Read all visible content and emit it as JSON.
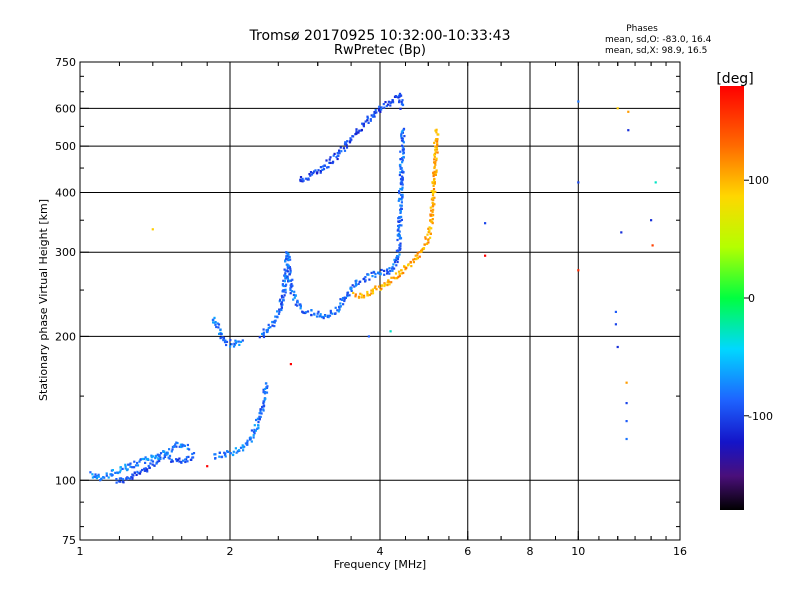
{
  "chart_data": {
    "type": "scatter",
    "title": "Tromsø 20170925 10:32:00-10:33:43",
    "subtitle": "RwPretec (Bp)",
    "xlabel": "Frequency [MHz]",
    "ylabel": "Stationary phase Virtual Height [km]",
    "x_scale": "log",
    "y_scale": "log",
    "xlim": [
      1,
      16
    ],
    "ylim": [
      75,
      750
    ],
    "x_ticks": [
      1,
      2,
      4,
      6,
      8,
      10,
      16
    ],
    "y_ticks": [
      75,
      100,
      200,
      300,
      400,
      500,
      600,
      750
    ],
    "x_tick_labels": [
      "1",
      "2",
      "4",
      "6",
      "8",
      "10",
      "16"
    ],
    "y_tick_labels": [
      "75",
      "100",
      "200",
      "300",
      "400",
      "500",
      "600",
      "750"
    ],
    "x_gridlines": [
      2,
      4,
      6,
      8,
      10
    ],
    "y_gridlines": [
      100,
      200,
      300,
      400,
      500,
      600
    ],
    "grid": true,
    "legend": {
      "title": "Phases",
      "lines": [
        "mean, sd,O: -83.0, 16.4",
        "mean, sd,X:  98.9, 16.5"
      ],
      "position": "top-right"
    },
    "colorbar": {
      "title": "[deg]",
      "range": [
        -180,
        180
      ],
      "ticks": [
        100,
        0,
        -100
      ],
      "tick_labels": [
        "100",
        "0",
        "-100"
      ],
      "position": "right"
    },
    "series": [
      {
        "name": "",
        "trace": "o1",
        "phase_deg": -95,
        "points": [
          [
            1.18,
            100
          ],
          [
            1.22,
            100
          ],
          [
            1.26,
            101
          ],
          [
            1.3,
            103
          ],
          [
            1.34,
            105
          ],
          [
            1.38,
            107
          ],
          [
            1.42,
            109
          ],
          [
            1.46,
            111
          ],
          [
            1.5,
            112
          ],
          [
            1.55,
            110
          ],
          [
            1.6,
            109
          ],
          [
            1.65,
            111
          ],
          [
            1.7,
            113
          ]
        ]
      },
      {
        "name": "",
        "trace": "o1b",
        "phase_deg": -75,
        "points": [
          [
            1.05,
            103
          ],
          [
            1.1,
            101
          ],
          [
            1.5,
            115
          ],
          [
            1.58,
            119
          ],
          [
            1.66,
            117
          ]
        ]
      },
      {
        "name": "",
        "trace": "o2",
        "phase_deg": -80,
        "points": [
          [
            1.85,
            112
          ],
          [
            1.92,
            113
          ],
          [
            2.0,
            114
          ],
          [
            2.08,
            116
          ],
          [
            2.15,
            118
          ],
          [
            2.2,
            122
          ],
          [
            2.25,
            128
          ],
          [
            2.3,
            135
          ],
          [
            2.35,
            150
          ],
          [
            2.38,
            160
          ]
        ]
      },
      {
        "name": "",
        "trace": "o3",
        "phase_deg": -80,
        "points": [
          [
            1.85,
            218
          ],
          [
            1.88,
            212
          ],
          [
            1.91,
            205
          ],
          [
            1.94,
            198
          ],
          [
            1.98,
            194
          ],
          [
            2.02,
            193
          ],
          [
            2.07,
            194
          ],
          [
            2.12,
            196
          ]
        ]
      },
      {
        "name": "",
        "trace": "o4",
        "phase_deg": -85,
        "points": [
          [
            2.3,
            200
          ],
          [
            2.38,
            206
          ],
          [
            2.46,
            215
          ],
          [
            2.52,
            228
          ],
          [
            2.56,
            245
          ],
          [
            2.58,
            262
          ],
          [
            2.6,
            282
          ],
          [
            2.61,
            298
          ],
          [
            2.63,
            270
          ],
          [
            2.66,
            250
          ],
          [
            2.72,
            236
          ],
          [
            2.8,
            228
          ],
          [
            2.9,
            224
          ],
          [
            3.0,
            222
          ],
          [
            3.1,
            221
          ],
          [
            3.2,
            223
          ],
          [
            3.3,
            229
          ],
          [
            3.4,
            240
          ],
          [
            3.5,
            250
          ],
          [
            3.6,
            258
          ],
          [
            3.7,
            263
          ],
          [
            3.8,
            267
          ],
          [
            3.9,
            270
          ],
          [
            4.0,
            272
          ],
          [
            4.1,
            273
          ],
          [
            4.2,
            275
          ],
          [
            4.3,
            282
          ],
          [
            4.35,
            300
          ],
          [
            4.38,
            330
          ],
          [
            4.4,
            380
          ],
          [
            4.42,
            440
          ],
          [
            4.44,
            500
          ],
          [
            4.45,
            545
          ]
        ]
      },
      {
        "name": "",
        "trace": "o5",
        "phase_deg": -100,
        "points": [
          [
            2.75,
            425
          ],
          [
            2.85,
            430
          ],
          [
            2.95,
            438
          ],
          [
            3.05,
            448
          ],
          [
            3.15,
            460
          ],
          [
            3.3,
            480
          ],
          [
            3.45,
            510
          ],
          [
            3.6,
            535
          ],
          [
            3.75,
            560
          ],
          [
            3.9,
            585
          ],
          [
            4.0,
            600
          ],
          [
            4.1,
            610
          ],
          [
            4.2,
            620
          ],
          [
            4.3,
            630
          ],
          [
            4.38,
            640
          ],
          [
            4.42,
            600
          ]
        ]
      },
      {
        "name": "",
        "trace": "x1",
        "phase_deg": 105,
        "points": [
          [
            3.55,
            245
          ],
          [
            3.65,
            244
          ],
          [
            3.75,
            245
          ],
          [
            3.85,
            248
          ],
          [
            3.95,
            252
          ],
          [
            4.05,
            256
          ],
          [
            4.15,
            260
          ],
          [
            4.25,
            265
          ],
          [
            4.35,
            270
          ],
          [
            4.45,
            276
          ],
          [
            4.55,
            282
          ],
          [
            4.65,
            288
          ],
          [
            4.75,
            294
          ],
          [
            4.85,
            300
          ],
          [
            4.93,
            310
          ],
          [
            5.0,
            325
          ],
          [
            5.05,
            345
          ],
          [
            5.1,
            375
          ],
          [
            5.13,
            410
          ],
          [
            5.16,
            450
          ],
          [
            5.18,
            500
          ],
          [
            5.2,
            540
          ]
        ]
      },
      {
        "name": "",
        "trace": "scattered",
        "phase_deg": 0,
        "points": [
          [
            1.4,
            335
          ],
          [
            6.5,
            345
          ],
          [
            6.5,
            295
          ],
          [
            10.0,
            620
          ],
          [
            10.0,
            420
          ],
          [
            10.0,
            275
          ],
          [
            12.0,
            600
          ],
          [
            12.6,
            590
          ],
          [
            12.6,
            540
          ],
          [
            12.2,
            330
          ],
          [
            14.0,
            350
          ],
          [
            14.1,
            310
          ],
          [
            14.3,
            420
          ],
          [
            11.9,
            225
          ],
          [
            11.9,
            212
          ],
          [
            12.0,
            190
          ],
          [
            12.5,
            160
          ],
          [
            12.5,
            145
          ],
          [
            12.5,
            133
          ],
          [
            12.5,
            122
          ],
          [
            3.8,
            200
          ],
          [
            4.2,
            205
          ],
          [
            2.65,
            175
          ],
          [
            1.8,
            107
          ]
        ],
        "phases": [
          90,
          -100,
          180,
          -80,
          -100,
          160,
          90,
          110,
          -110,
          -110,
          -110,
          150,
          -30,
          -90,
          -100,
          -110,
          110,
          -100,
          -90,
          -80,
          -90,
          -30,
          180,
          180
        ]
      }
    ]
  }
}
